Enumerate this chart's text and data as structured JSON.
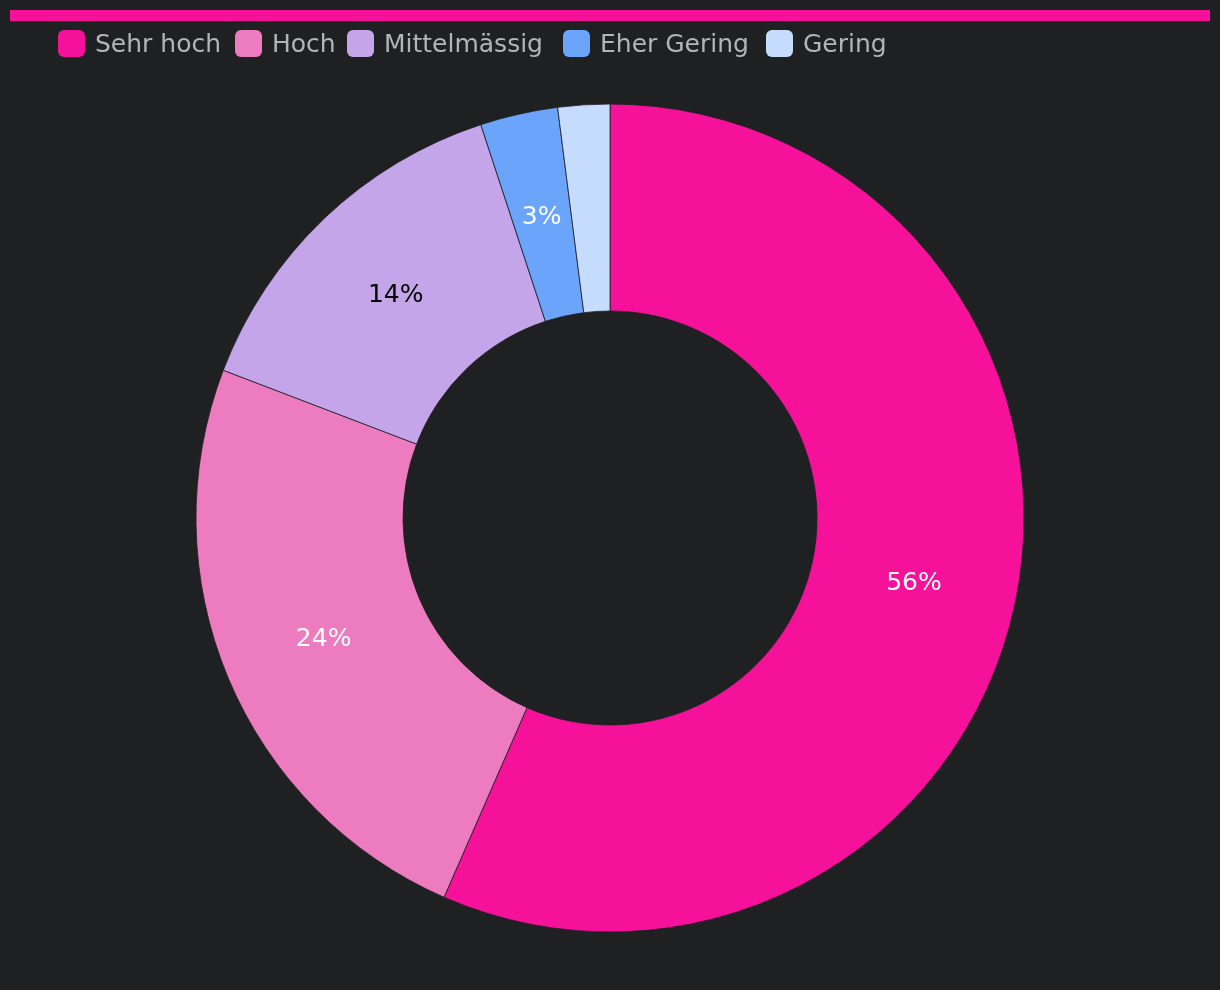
{
  "chart_data": {
    "type": "donut",
    "categories": [
      "Sehr hoch",
      "Hoch",
      "Mittelmässig",
      "Eher Gering",
      "Gering"
    ],
    "values": [
      56,
      24,
      14,
      3,
      2
    ],
    "colors": [
      "#f5119a",
      "#ed7bc0",
      "#c4a5ea",
      "#6aa5fb",
      "#c6dcff"
    ],
    "value_labels": [
      "56%",
      "24%",
      "14%",
      "3%",
      null
    ],
    "legend": "top"
  }
}
